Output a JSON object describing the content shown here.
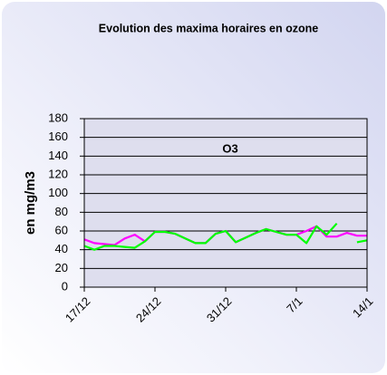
{
  "chart_data": {
    "type": "line",
    "title": "Evolution des maxima horaires en ozone",
    "y_label": "en mg/m3",
    "annotation": "O3",
    "categories": [
      "17/12",
      null,
      null,
      null,
      null,
      null,
      null,
      "24/12",
      null,
      null,
      null,
      null,
      null,
      null,
      "31/12",
      null,
      null,
      null,
      null,
      null,
      null,
      "7/1",
      null,
      null,
      null,
      null,
      null,
      null,
      "14/1"
    ],
    "series": [
      {
        "color": "#ff00ff",
        "values": [
          51,
          47,
          46,
          45,
          52,
          56,
          49,
          59,
          59,
          57,
          52,
          47,
          47,
          57,
          60,
          48,
          53,
          58,
          62,
          59,
          56,
          56,
          60,
          65,
          54,
          54,
          58,
          55,
          55
        ]
      },
      {
        "color": "#00ff00",
        "values": [
          44,
          40,
          44,
          44,
          43,
          42,
          49,
          59,
          59,
          57,
          52,
          47,
          47,
          57,
          60,
          48,
          53,
          58,
          62,
          59,
          56,
          56,
          47,
          65,
          56,
          68,
          null,
          48,
          50
        ]
      }
    ],
    "ylim": [
      0,
      180
    ],
    "yticks": [
      0,
      20,
      40,
      60,
      80,
      100,
      120,
      140,
      160,
      180
    ],
    "grid": true
  }
}
